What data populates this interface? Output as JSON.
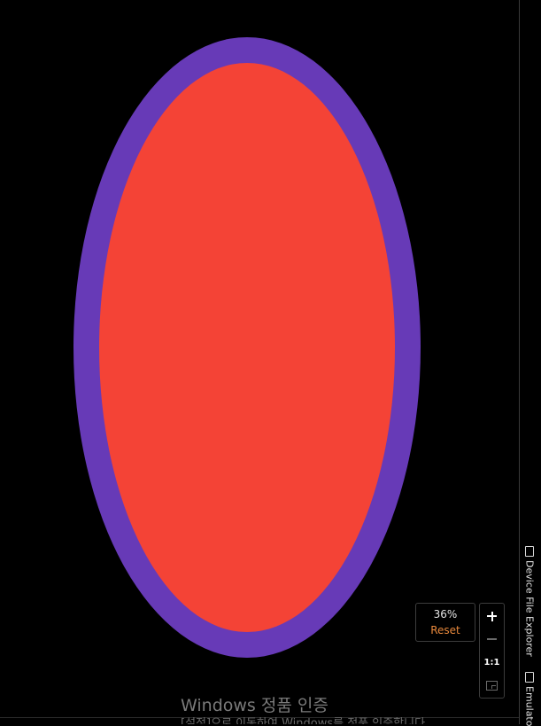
{
  "preview": {
    "outer_color": "#673AB7",
    "inner_color": "#F44336",
    "background_color": "#000000"
  },
  "zoom": {
    "percent": "36%",
    "reset_label": "Reset",
    "one_to_one_label": "1:1",
    "icons": [
      "plus-icon",
      "minus-icon",
      "fit-screen-icon"
    ]
  },
  "side_tabs": {
    "device_file_explorer": "Device File Explorer",
    "emulator": "Emulato"
  },
  "watermark": {
    "title": "Windows 정품 인증",
    "subtitle": "[설정]으로 이동하여 Windows를 정품 인증합니다."
  }
}
